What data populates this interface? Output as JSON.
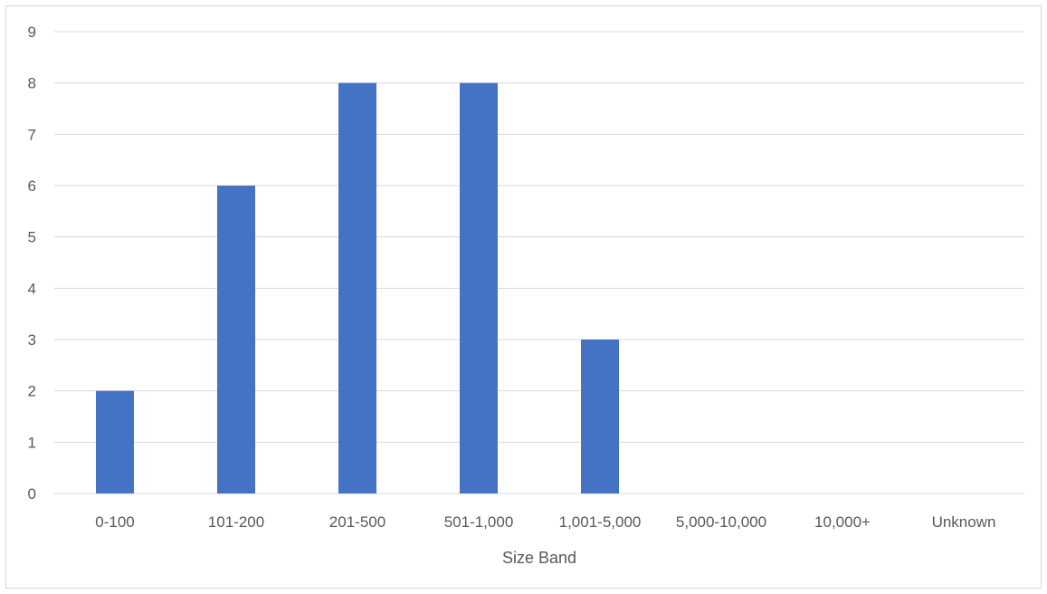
{
  "chart_data": {
    "type": "bar",
    "title": "",
    "xlabel": "Size Band",
    "ylabel": "",
    "categories": [
      "0-100",
      "101-200",
      "201-500",
      "501-1,000",
      "1,001-5,000",
      "5,000-10,000",
      "10,000+",
      "Unknown"
    ],
    "values": [
      2,
      6,
      8,
      8,
      3,
      0,
      0,
      0
    ],
    "ylim": [
      0,
      9
    ],
    "yticks": [
      0,
      1,
      2,
      3,
      4,
      5,
      6,
      7,
      8,
      9
    ],
    "grid": true,
    "legend": "none",
    "bar_color": "#4472C4",
    "grid_color": "#d9d9d9"
  }
}
